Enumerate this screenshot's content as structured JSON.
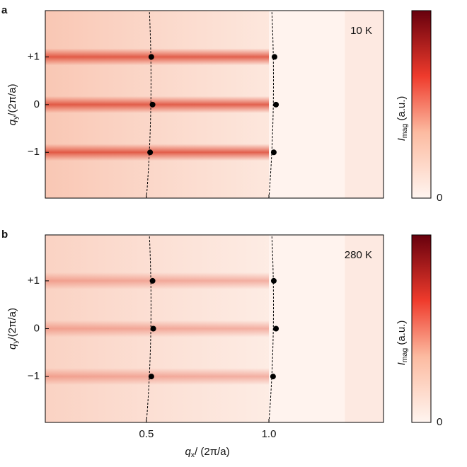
{
  "chart_data": [
    {
      "type": "scatter",
      "panel_label": "a",
      "annotation": "10 K",
      "x": [
        0.52,
        0.525,
        0.515,
        1.023,
        1.029,
        1.02
      ],
      "y": [
        1,
        0,
        -1,
        1,
        0,
        -1
      ],
      "color": "#000000",
      "xlim": [
        0.087,
        1.468
      ],
      "ylim": [
        -1.96,
        1.97
      ],
      "xticks": [
        0.5,
        {
          "value": 1,
          "label": "1.0"
        }
      ],
      "xtick_labels": false,
      "yticks": [
        {
          "value": 1,
          "label": "+1"
        },
        0,
        {
          "value": -1,
          "label": "−1"
        }
      ],
      "ylabel": {
        "symbol": "q",
        "sub": "y",
        "rest": "/(2π/a)"
      },
      "colorbar_label": {
        "symbol": "I",
        "sub": "mag",
        "rest": " (a.u.)"
      },
      "colorbar_ticks": [
        0
      ],
      "intensity": "strong"
    },
    {
      "type": "scatter",
      "panel_label": "b",
      "annotation": "280 K",
      "x": [
        0.525,
        0.528,
        0.52,
        1.02,
        1.029,
        1.017
      ],
      "y": [
        1,
        0,
        -1,
        1,
        0,
        -1
      ],
      "color": "#000000",
      "xlim": [
        0.087,
        1.468
      ],
      "ylim": [
        -1.96,
        1.96
      ],
      "xticks": [
        0.5,
        {
          "value": 1,
          "label": "1.0"
        }
      ],
      "xtick_labels": true,
      "yticks": [
        {
          "value": 1,
          "label": "+1"
        },
        0,
        {
          "value": -1,
          "label": "−1"
        }
      ],
      "ylabel": {
        "symbol": "q",
        "sub": "y",
        "rest": "/(2π/a)"
      },
      "xlabel": {
        "symbol": "q",
        "sub": "x",
        "rest": "/ (2π/a)"
      },
      "colorbar_label": {
        "symbol": "I",
        "sub": "mag",
        "rest": " (a.u.)"
      },
      "colorbar_ticks": [
        0
      ],
      "intensity": "weak"
    }
  ]
}
